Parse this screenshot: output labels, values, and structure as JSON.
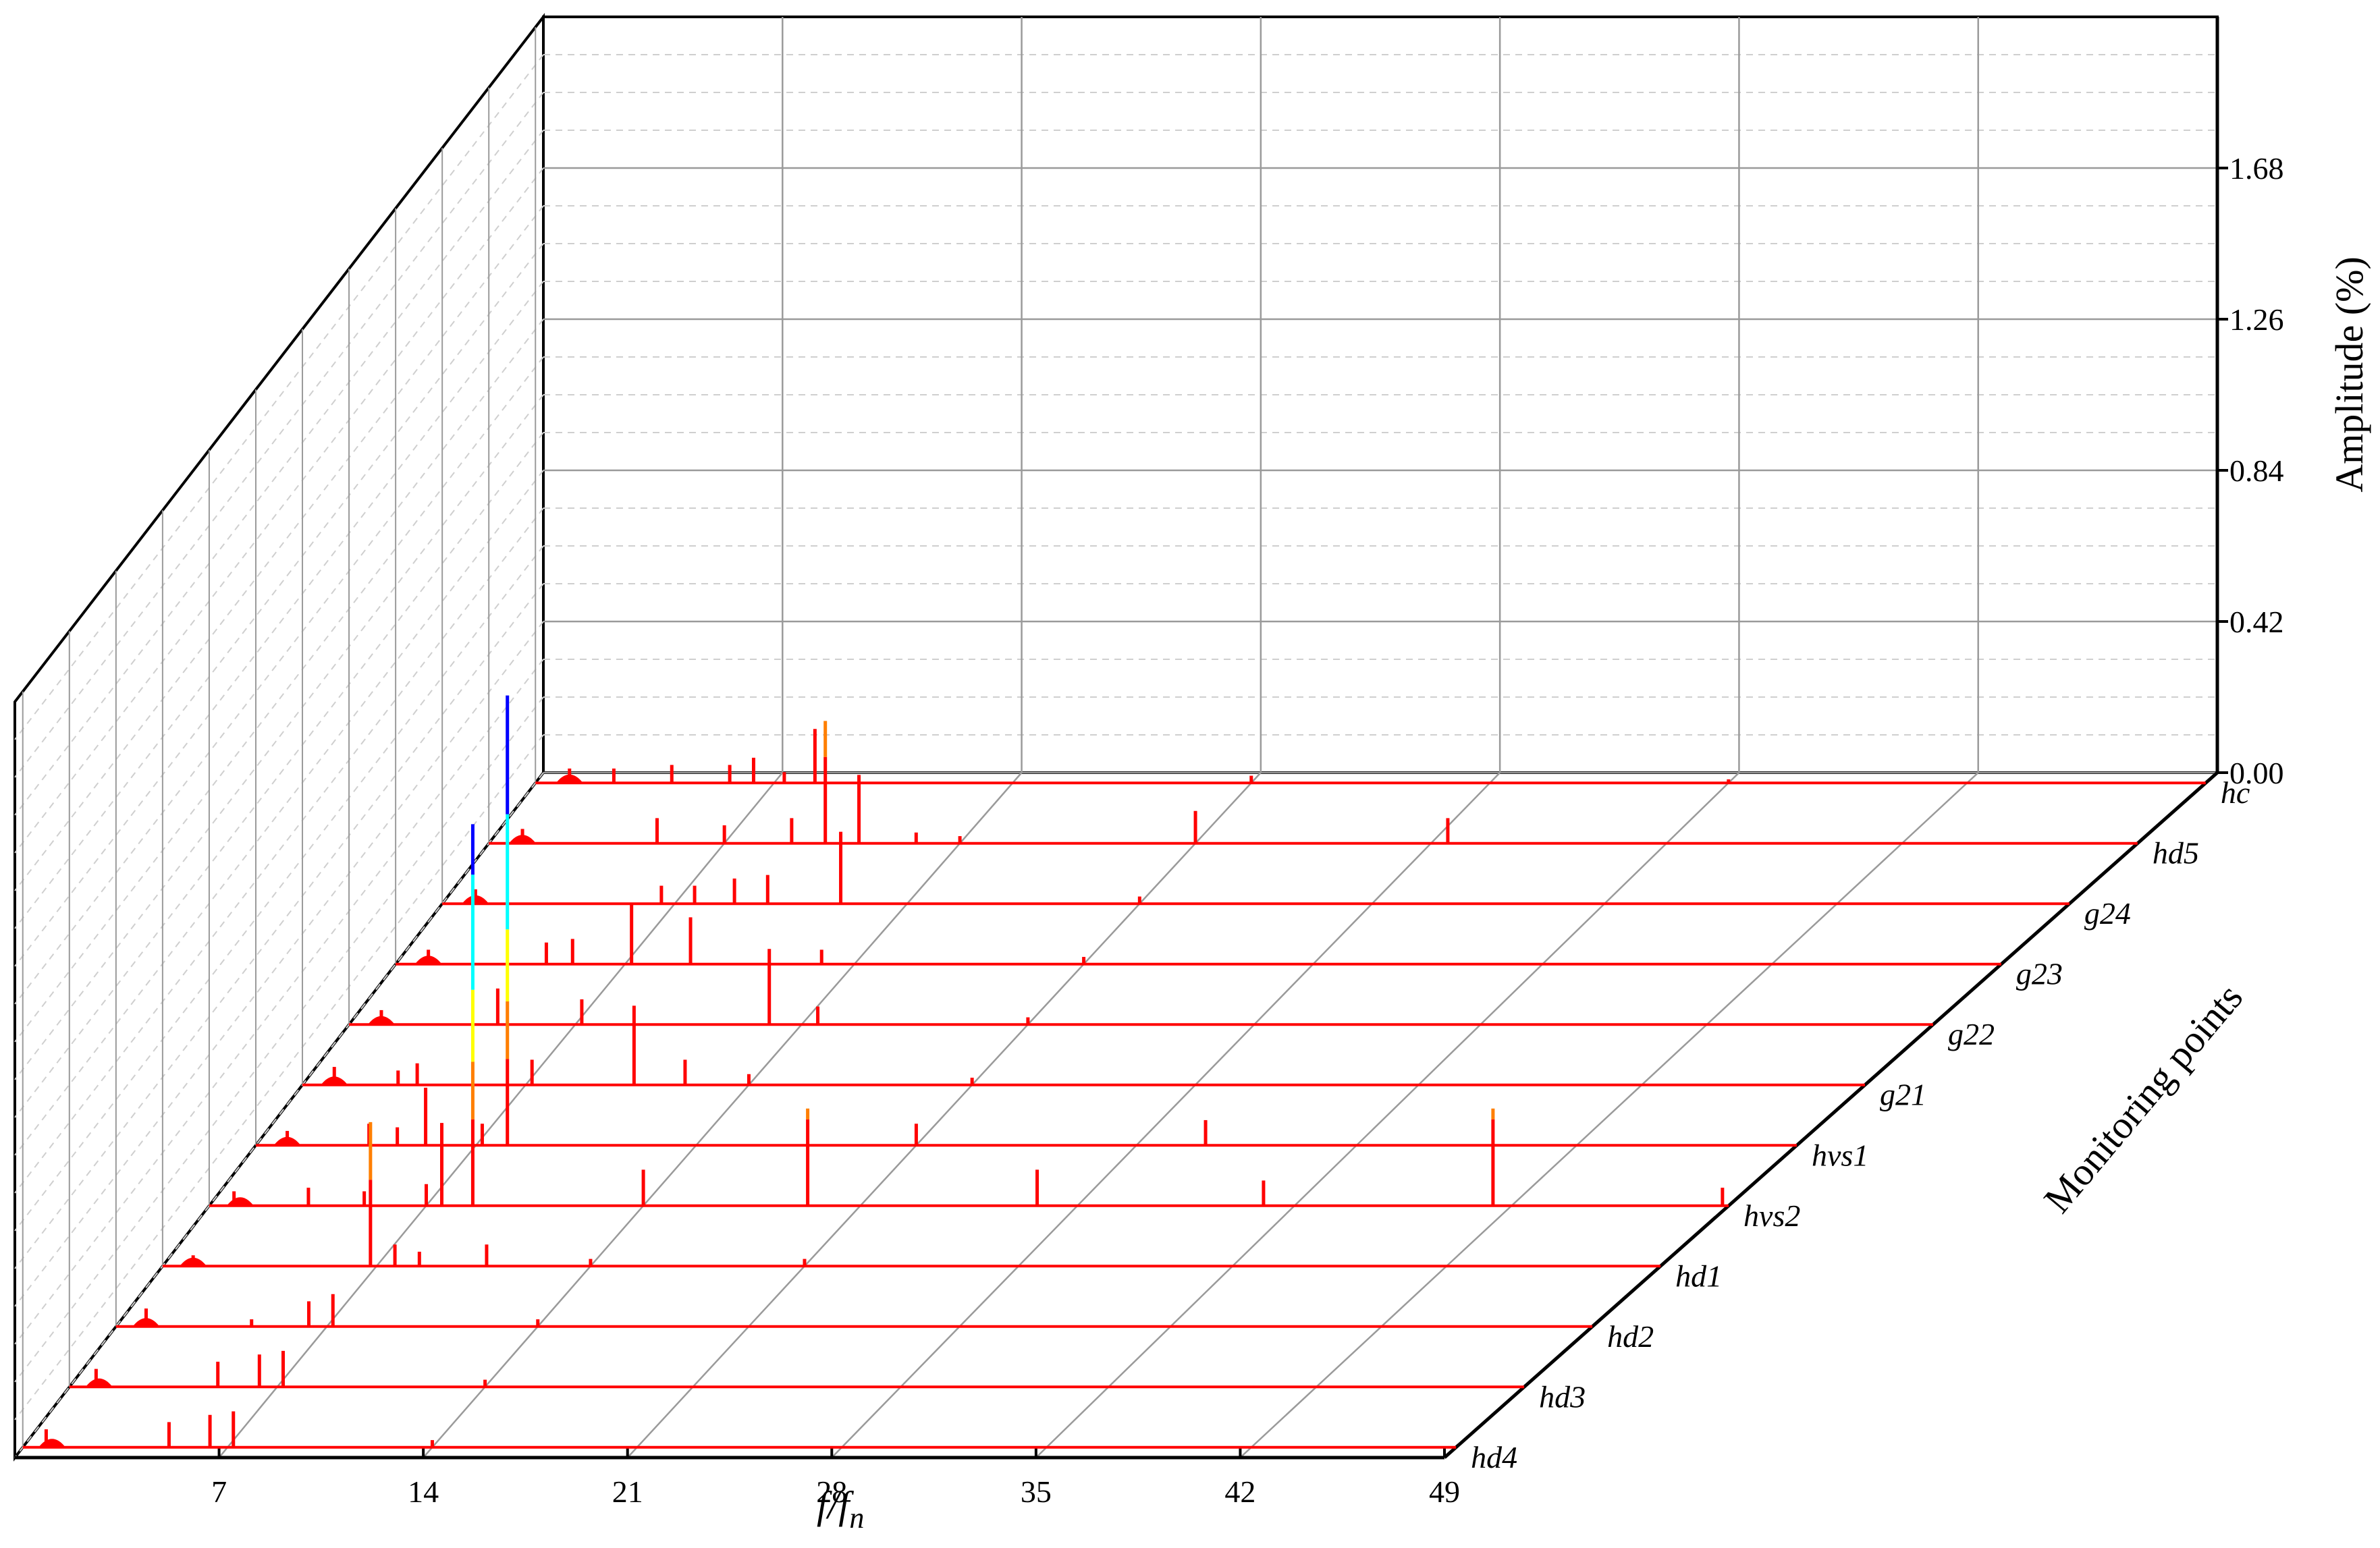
{
  "chart_data": {
    "type": "waterfall-3d-line",
    "xlabel": "f/f",
    "xlabel_sub": "n",
    "ylabel": "Amplitude (%)",
    "zlabel": "Monitoring points",
    "x_ticks": [
      "7",
      "14",
      "21",
      "28",
      "35",
      "42",
      "49"
    ],
    "z_ticks": [
      "0.00",
      "0.42",
      "0.84",
      "1.26",
      "1.68"
    ],
    "xlim": [
      0,
      49
    ],
    "zlim": [
      0,
      2.1
    ],
    "line_color": "#ff0000",
    "colormap": [
      "#ff0000",
      "#ff7f00",
      "#ffff00",
      "#00ffff",
      "#0000ff"
    ],
    "series": [
      {
        "name": "hd4",
        "peaks": [
          [
            0.8,
            0.05
          ],
          [
            5,
            0.07
          ],
          [
            6.4,
            0.09
          ],
          [
            7.2,
            0.1
          ],
          [
            14,
            0.02
          ]
        ]
      },
      {
        "name": "hd3",
        "peaks": [
          [
            0.9,
            0.05
          ],
          [
            5,
            0.07
          ],
          [
            6.4,
            0.09
          ],
          [
            7.2,
            0.1
          ],
          [
            14,
            0.02
          ]
        ]
      },
      {
        "name": "hd2",
        "peaks": [
          [
            1,
            0.05
          ],
          [
            4.5,
            0.02
          ],
          [
            6.4,
            0.07
          ],
          [
            7.2,
            0.09
          ],
          [
            14,
            0.02
          ]
        ]
      },
      {
        "name": "hd1",
        "peaks": [
          [
            1,
            0.03
          ],
          [
            6.8,
            0.4
          ],
          [
            7.6,
            0.06
          ],
          [
            8.4,
            0.04
          ],
          [
            10.6,
            0.06
          ],
          [
            14,
            0.02
          ],
          [
            21,
            0.02
          ]
        ]
      },
      {
        "name": "hvs2",
        "peaks": [
          [
            0.8,
            0.04
          ],
          [
            3.2,
            0.05
          ],
          [
            5,
            0.04
          ],
          [
            7,
            0.06
          ],
          [
            7.5,
            0.23
          ],
          [
            8.5,
            1.06
          ],
          [
            14,
            0.1
          ],
          [
            19.3,
            0.27
          ],
          [
            26.7,
            0.1
          ],
          [
            34,
            0.07
          ],
          [
            41.4,
            0.27
          ],
          [
            48.8,
            0.05
          ]
        ]
      },
      {
        "name": "hvs1",
        "peaks": [
          [
            1,
            0.04
          ],
          [
            3.6,
            0.06
          ],
          [
            4.5,
            0.05
          ],
          [
            5.4,
            0.16
          ],
          [
            7.2,
            0.06
          ],
          [
            8,
            1.25
          ],
          [
            21,
            0.06
          ],
          [
            30.2,
            0.07
          ]
        ]
      },
      {
        "name": "g21",
        "peaks": [
          [
            1,
            0.05
          ],
          [
            3,
            0.04
          ],
          [
            3.6,
            0.06
          ],
          [
            7.2,
            0.07
          ],
          [
            10.4,
            0.22
          ],
          [
            12,
            0.07
          ],
          [
            14,
            0.03
          ],
          [
            21,
            0.02
          ]
        ]
      },
      {
        "name": "g22",
        "peaks": [
          [
            1,
            0.04
          ],
          [
            4.6,
            0.1
          ],
          [
            7.2,
            0.07
          ],
          [
            13,
            0.21
          ],
          [
            14.5,
            0.05
          ],
          [
            21,
            0.02
          ]
        ]
      },
      {
        "name": "g23",
        "peaks": [
          [
            1,
            0.04
          ],
          [
            4.6,
            0.06
          ],
          [
            5.4,
            0.07
          ],
          [
            7.2,
            0.17
          ],
          [
            9,
            0.13
          ],
          [
            13,
            0.04
          ],
          [
            21,
            0.02
          ]
        ]
      },
      {
        "name": "g24",
        "peaks": [
          [
            1,
            0.04
          ],
          [
            6.6,
            0.05
          ],
          [
            7.6,
            0.05
          ],
          [
            8.8,
            0.07
          ],
          [
            9.8,
            0.08
          ],
          [
            12,
            0.2
          ],
          [
            21,
            0.02
          ]
        ]
      },
      {
        "name": "hd5",
        "peaks": [
          [
            1,
            0.04
          ],
          [
            5,
            0.07
          ],
          [
            7,
            0.05
          ],
          [
            9,
            0.07
          ],
          [
            10,
            0.34
          ],
          [
            11,
            0.19
          ],
          [
            12.7,
            0.03
          ],
          [
            14,
            0.02
          ],
          [
            21,
            0.09
          ],
          [
            28.5,
            0.07
          ]
        ]
      },
      {
        "name": "hc",
        "peaks": [
          [
            1,
            0.04
          ],
          [
            2.3,
            0.04
          ],
          [
            4,
            0.05
          ],
          [
            5.7,
            0.05
          ],
          [
            6.4,
            0.07
          ],
          [
            7.3,
            0.03
          ],
          [
            8.2,
            0.15
          ],
          [
            21,
            0.02
          ],
          [
            35,
            0.01
          ]
        ]
      }
    ]
  }
}
